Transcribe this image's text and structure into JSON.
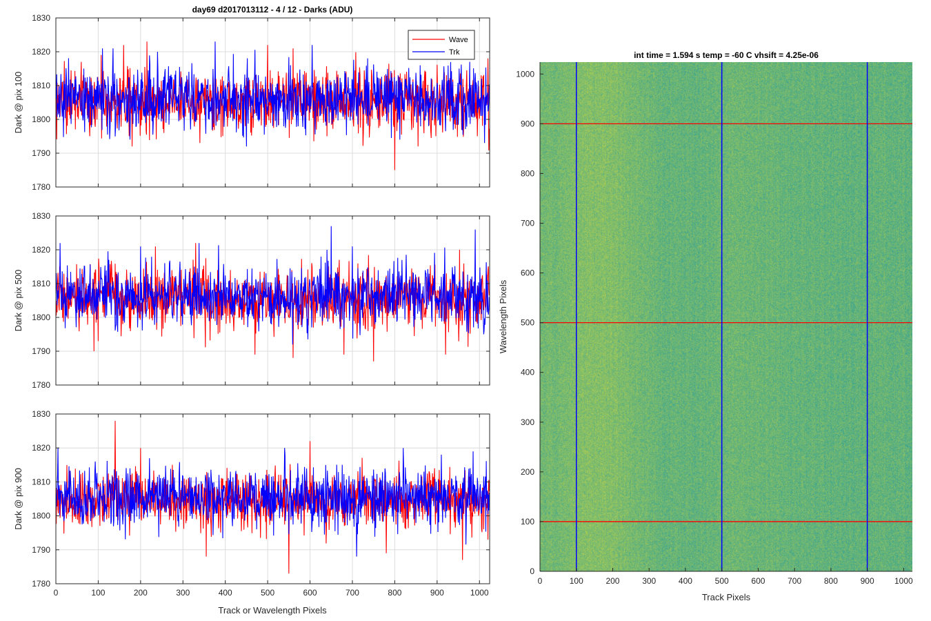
{
  "figure": {
    "title": "day69 d2017013112 - 4 / 12 - Darks (ADU)",
    "xlabel": "Track or Wavelength Pixels"
  },
  "colors": {
    "wave": "#ff0000",
    "trk": "#0000ff",
    "grid": "#dcdcdc",
    "axes": "#262626",
    "heatmap_low": "#1f9aa0",
    "heatmap_high": "#bcd24a"
  },
  "legend": {
    "wave_label": "Wave",
    "trk_label": "Trk",
    "placement": "top-right"
  },
  "chart_data": [
    {
      "type": "line",
      "ylabel": "Dark @ pix 100",
      "xlim": [
        0,
        1024
      ],
      "ylim": [
        1780,
        1830
      ],
      "xticks": [
        0,
        100,
        200,
        300,
        400,
        500,
        600,
        700,
        800,
        900,
        1000
      ],
      "yticks": [
        1780,
        1790,
        1800,
        1810,
        1820,
        1830
      ],
      "grid": true,
      "n_points": 1024,
      "series": [
        {
          "name": "Wave",
          "color": "#ff0000",
          "mean": 1805.5,
          "std": 4.5,
          "min": 1785,
          "max": 1823,
          "anchors": [
            [
              60,
              1817
            ],
            [
              80,
              1795
            ],
            [
              160,
              1822
            ],
            [
              180,
              1792
            ],
            [
              215,
              1823
            ],
            [
              255,
              1796
            ],
            [
              340,
              1793
            ],
            [
              500,
              1822
            ],
            [
              560,
              1821
            ],
            [
              640,
              1795
            ],
            [
              800,
              1785
            ],
            [
              855,
              1792
            ],
            [
              995,
              1795
            ],
            [
              1020,
              1818
            ]
          ]
        },
        {
          "name": "Trk",
          "color": "#0000ff",
          "mean": 1806,
          "std": 4.5,
          "min": 1792,
          "max": 1823,
          "anchors": [
            [
              110,
              1821
            ],
            [
              135,
              1821
            ],
            [
              175,
              1794
            ],
            [
              240,
              1820
            ],
            [
              260,
              1799
            ],
            [
              376,
              1823
            ],
            [
              450,
              1792
            ],
            [
              605,
              1822
            ],
            [
              860,
              1816
            ],
            [
              880,
              1798
            ],
            [
              1012,
              1793
            ]
          ]
        }
      ]
    },
    {
      "type": "line",
      "ylabel": "Dark @ pix 500",
      "xlim": [
        0,
        1024
      ],
      "ylim": [
        1780,
        1830
      ],
      "xticks": [
        0,
        100,
        200,
        300,
        400,
        500,
        600,
        700,
        800,
        900,
        1000
      ],
      "yticks": [
        1780,
        1790,
        1800,
        1810,
        1820,
        1830
      ],
      "grid": true,
      "n_points": 1024,
      "series": [
        {
          "name": "Wave",
          "color": "#ff0000",
          "mean": 1805.5,
          "std": 4.5,
          "min": 1787,
          "max": 1822,
          "anchors": [
            [
              90,
              1790
            ],
            [
              235,
              1821
            ],
            [
              330,
              1822
            ],
            [
              470,
              1789
            ],
            [
              560,
              1788
            ],
            [
              680,
              1789
            ],
            [
              750,
              1787
            ],
            [
              920,
              1789
            ],
            [
              1020,
              1814
            ]
          ]
        },
        {
          "name": "Trk",
          "color": "#0000ff",
          "mean": 1806.5,
          "std": 4.5,
          "min": 1790,
          "max": 1827,
          "anchors": [
            [
              10,
              1822
            ],
            [
              200,
              1821
            ],
            [
              338,
              1822
            ],
            [
              640,
              1820
            ],
            [
              650,
              1827
            ],
            [
              700,
              1821
            ],
            [
              990,
              1826
            ],
            [
              1010,
              1795
            ]
          ]
        }
      ]
    },
    {
      "type": "line",
      "ylabel": "Dark @ pix 900",
      "xlim": [
        0,
        1024
      ],
      "ylim": [
        1780,
        1830
      ],
      "xticks": [
        0,
        100,
        200,
        300,
        400,
        500,
        600,
        700,
        800,
        900,
        1000
      ],
      "yticks": [
        1780,
        1790,
        1800,
        1810,
        1820,
        1830
      ],
      "grid": true,
      "n_points": 1024,
      "series": [
        {
          "name": "Wave",
          "color": "#ff0000",
          "mean": 1804.5,
          "std": 4.2,
          "min": 1783,
          "max": 1828,
          "anchors": [
            [
              140,
              1828
            ],
            [
              200,
              1820
            ],
            [
              355,
              1788
            ],
            [
              550,
              1783
            ],
            [
              600,
              1822
            ],
            [
              780,
              1789
            ],
            [
              960,
              1787
            ],
            [
              1020,
              1793
            ]
          ]
        },
        {
          "name": "Trk",
          "color": "#0000ff",
          "mean": 1805.5,
          "std": 4.2,
          "min": 1788,
          "max": 1820,
          "anchors": [
            [
              5,
              1820
            ],
            [
              270,
              1800
            ],
            [
              540,
              1820
            ],
            [
              710,
              1788
            ],
            [
              820,
              1820
            ],
            [
              985,
              1819
            ]
          ]
        }
      ]
    },
    {
      "type": "heatmap",
      "title": "int time = 1.594 s   temp = -60 C   vhsift = 4.25e-06",
      "xlabel": "Track Pixels",
      "ylabel": "Wavelength Pixels",
      "xlim": [
        0,
        1024
      ],
      "ylim": [
        0,
        1024
      ],
      "xticks": [
        0,
        100,
        200,
        300,
        400,
        500,
        600,
        700,
        800,
        900,
        1000
      ],
      "yticks": [
        0,
        100,
        200,
        300,
        400,
        500,
        600,
        700,
        800,
        900,
        1000
      ],
      "colormap": "parula",
      "value_range": "approx. 1790-1825 ADU",
      "column_brightness_profile": [
        [
          0,
          0.55
        ],
        [
          60,
          0.6
        ],
        [
          110,
          0.72
        ],
        [
          170,
          0.78
        ],
        [
          260,
          0.62
        ],
        [
          340,
          0.42
        ],
        [
          420,
          0.4
        ],
        [
          500,
          0.45
        ],
        [
          520,
          0.52
        ],
        [
          600,
          0.5
        ],
        [
          680,
          0.42
        ],
        [
          760,
          0.4
        ],
        [
          840,
          0.36
        ],
        [
          920,
          0.4
        ],
        [
          1024,
          0.38
        ]
      ],
      "row_markers": {
        "color": "#ff0000",
        "values": [
          100,
          500,
          900
        ]
      },
      "column_markers": {
        "color": "#0000ff",
        "values": [
          100,
          500,
          900
        ]
      }
    }
  ]
}
